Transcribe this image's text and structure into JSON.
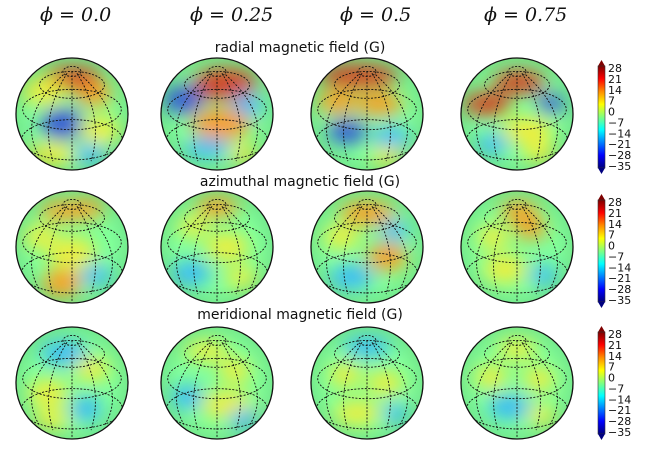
{
  "phase_labels": [
    "ϕ = 0.0",
    "ϕ = 0.25",
    "ϕ = 0.5",
    "ϕ = 0.75"
  ],
  "rows": [
    {
      "title": "radial magnetic field (G)"
    },
    {
      "title": "azimuthal magnetic field (G)"
    },
    {
      "title": "meridional magnetic field (G)"
    }
  ],
  "colorbar": {
    "ticks": [
      "28",
      "21",
      "14",
      "7",
      "0",
      "−7",
      "−14",
      "−21",
      "−28",
      "−35"
    ],
    "colors": [
      "#7f0000",
      "#ff0000",
      "#ff8c00",
      "#ffff00",
      "#80ff80",
      "#00ffff",
      "#0080ff",
      "#0000ff",
      "#00007f"
    ]
  },
  "palette": {
    "background": "#7fff9a",
    "hot": "#d63a1a",
    "warm": "#ff9a1a",
    "yellow": "#f2ee3a",
    "cool": "#33b4ff",
    "cold": "#2a4fd8"
  }
}
